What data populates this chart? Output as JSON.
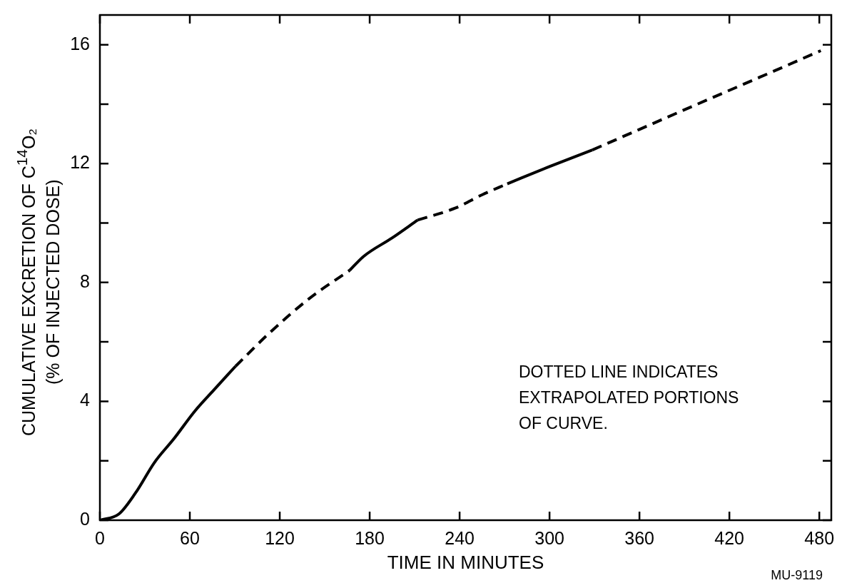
{
  "chart_data": {
    "type": "line",
    "xlabel": "TIME IN MINUTES",
    "ylabel": "CUMULATIVE EXCRETION OF C$^{14}$O₂\n(% OF INJECTED DOSE)",
    "annotations": [
      "DOTTED LINE INDICATES\nEXTRAPOLATED PORTIONS\nOF CURVE.",
      "MU-9119"
    ],
    "xlim": [
      0,
      488
    ],
    "xticks": [
      0,
      60,
      120,
      180,
      240,
      300,
      360,
      420,
      480
    ],
    "ylim": [
      0,
      17
    ],
    "yticks": [
      0,
      {
        "value": 2,
        "label": null
      },
      4,
      {
        "value": 6,
        "label": null
      },
      8,
      {
        "value": 10,
        "label": null
      },
      12,
      {
        "value": 14,
        "label": null
      },
      16
    ],
    "grid": false,
    "legend": false,
    "marker": "none",
    "series": [
      {
        "color": "#000000",
        "line_style": "solid",
        "x": [
          0,
          12.7,
          23.8,
          36.5,
          49.2,
          63.5,
          76.2,
          90.5
        ],
        "values": [
          0,
          0.21,
          0.92,
          1.95,
          2.73,
          3.68,
          4.39,
          5.18
        ]
      },
      {
        "color": "#000000",
        "line_style": "dashed",
        "x": [
          90.5,
          112.7,
          139.7,
          166.7
        ],
        "values": [
          5.18,
          6.28,
          7.46,
          8.41
        ]
      },
      {
        "color": "#000000",
        "line_style": "solid",
        "x": [
          166.7,
          176,
          195,
          212
        ],
        "values": [
          8.41,
          8.88,
          9.5,
          10.1
        ]
      },
      {
        "color": "#000000",
        "line_style": "dashed",
        "x": [
          212,
          237,
          255,
          271.8
        ],
        "values": [
          10.1,
          10.5,
          10.95,
          11.32
        ]
      },
      {
        "color": "#000000",
        "line_style": "solid",
        "x": [
          271.8,
          300,
          328.6
        ],
        "values": [
          11.32,
          11.9,
          12.46
        ]
      },
      {
        "color": "#000000",
        "line_style": "dashed",
        "x": [
          328.6,
          360,
          392.7,
          440,
          481
        ],
        "values": [
          12.46,
          13.15,
          13.87,
          14.9,
          15.8
        ]
      }
    ]
  }
}
